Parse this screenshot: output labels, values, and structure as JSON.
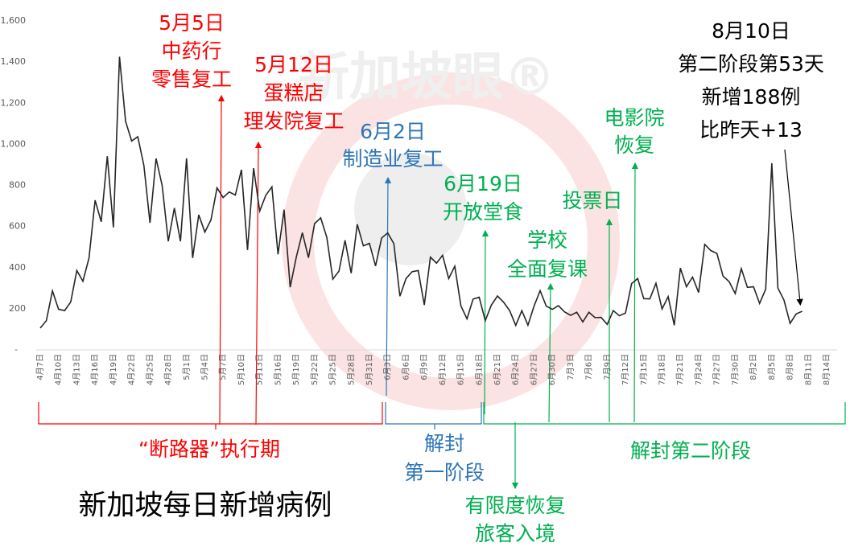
{
  "chart_data": {
    "type": "line",
    "title": "新加坡每日新增病例",
    "watermark": "新加坡眼®",
    "categories": [
      "4月7日",
      null,
      null,
      "4月10日",
      null,
      null,
      "4月13日",
      null,
      null,
      "4月16日",
      null,
      null,
      "4月19日",
      null,
      null,
      "4月22日",
      null,
      null,
      "4月25日",
      null,
      null,
      "4月28日",
      null,
      null,
      "5月1日",
      null,
      null,
      "5月4日",
      null,
      null,
      "5月7日",
      null,
      null,
      "5月10日",
      null,
      null,
      "5月13日",
      null,
      null,
      "5月16日",
      null,
      null,
      "5月19日",
      null,
      null,
      "5月22日",
      null,
      null,
      "5月25日",
      null,
      null,
      "5月28日",
      null,
      null,
      "5月31日",
      null,
      null,
      "6月3日",
      null,
      null,
      "6月6日",
      null,
      null,
      "6月9日",
      null,
      null,
      "6月12日",
      null,
      null,
      "6月15日",
      null,
      null,
      "6月18日",
      null,
      null,
      "6月21日",
      null,
      null,
      "6月24日",
      null,
      null,
      "6月27日",
      null,
      null,
      "6月30日",
      null,
      null,
      "7月3日",
      null,
      null,
      "7月6日",
      null,
      null,
      "7月9日",
      null,
      null,
      "7月12日",
      null,
      null,
      "7月15日",
      null,
      null,
      "7月18日",
      null,
      null,
      "7月21日",
      null,
      null,
      "7月24日",
      null,
      null,
      "7月27日",
      null,
      null,
      "7月30日",
      null,
      null,
      "8月2日",
      null,
      null,
      "8月5日",
      null,
      null,
      "8月8日",
      null,
      null,
      "8月11日",
      null,
      null,
      "8月14日"
    ],
    "values": [
      106,
      142,
      287,
      198,
      191,
      233,
      386,
      334,
      447,
      728,
      623,
      942,
      596,
      1426,
      1111,
      1016,
      1037,
      897,
      618,
      931,
      799,
      528,
      690,
      528,
      932,
      447,
      657,
      573,
      632,
      788,
      741,
      768,
      753,
      876,
      486,
      884,
      675,
      752,
      793,
      465,
      682,
      305,
      451,
      570,
      448,
      614,
      642,
      548,
      344,
      383,
      533,
      373,
      611,
      506,
      518,
      408,
      544,
      569,
      517,
      261,
      347,
      380,
      386,
      218,
      451,
      422,
      460,
      347,
      407,
      214,
      151,
      247,
      256,
      142,
      218,
      262,
      232,
      191,
      119,
      191,
      120,
      213,
      288,
      213,
      197,
      215,
      185,
      168,
      183,
      136,
      183,
      157,
      158,
      124,
      191,
      166,
      179,
      322,
      347,
      249,
      248,
      324,
      199,
      259,
      120,
      398,
      307,
      354,
      279,
      513,
      483,
      469,
      359,
      332,
      274,
      395,
      304,
      307,
      226,
      295,
      908,
      301,
      242,
      129,
      175,
      188,
      null,
      null,
      null,
      null
    ],
    "color": "#262626",
    "ylim": [
      0,
      1600
    ],
    "yticks": [
      {
        "value": 0,
        "label": "-"
      },
      200,
      400,
      600,
      800,
      {
        "value": 1000,
        "label": "1,000"
      },
      {
        "value": 1200,
        "label": "1,200"
      },
      {
        "value": 1400,
        "label": "1,400"
      },
      {
        "value": 1600,
        "label": "1,600"
      }
    ],
    "annotations": [
      {
        "lines": [
          "5月5日",
          "中药行",
          "零售复工"
        ],
        "color": "#ff0000"
      },
      {
        "lines": [
          "5月12日",
          "蛋糕店",
          "理发院复工"
        ],
        "color": "#ff0000"
      },
      {
        "lines": [
          "6月2日",
          "制造业复工"
        ],
        "color": "#2e75b6"
      },
      {
        "lines": [
          "6月19日",
          "开放堂食"
        ],
        "color": "#00b050"
      },
      {
        "lines": [
          "学校",
          "全面复课"
        ],
        "color": "#00b050"
      },
      {
        "lines": [
          "投票日"
        ],
        "color": "#00b050"
      },
      {
        "lines": [
          "电影院",
          "恢复"
        ],
        "color": "#00b050"
      },
      {
        "lines": [
          "8月10日",
          "第二阶段第53天",
          "新增188例",
          "比昨天+13"
        ],
        "color": "#000000"
      },
      {
        "lines": [
          "有限度恢复",
          "旅客入境"
        ],
        "color": "#00b050"
      }
    ],
    "periods": [
      {
        "lines": [
          "“断路器”执行期"
        ],
        "color": "#ff0000"
      },
      {
        "lines": [
          "解封",
          "第一阶段"
        ],
        "color": "#2e75b6"
      },
      {
        "lines": [
          "解封第二阶段"
        ],
        "color": "#00b050"
      }
    ]
  }
}
